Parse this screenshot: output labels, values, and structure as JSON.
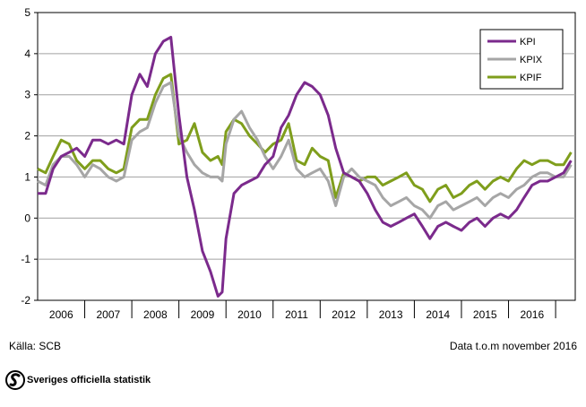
{
  "chart_data": {
    "type": "line",
    "title": "",
    "xlabel": "",
    "ylabel": "",
    "ylim": [
      -2,
      5
    ],
    "yticks": [
      "5",
      "4",
      "3",
      "2",
      "1",
      "0",
      "-1",
      "-2"
    ],
    "xlim": [
      2005.5,
      2016.917
    ],
    "xtick_years": [
      "2006",
      "2007",
      "2008",
      "2009",
      "2010",
      "2011",
      "2012",
      "2013",
      "2014",
      "2015",
      "2016"
    ],
    "legend_position": "top-right",
    "grid": "horizontal",
    "series": [
      {
        "name": "KPI",
        "color": "#7b2a8c",
        "points": [
          [
            2005.5,
            0.6
          ],
          [
            2005.67,
            0.6
          ],
          [
            2005.83,
            1.2
          ],
          [
            2006.0,
            1.5
          ],
          [
            2006.17,
            1.6
          ],
          [
            2006.33,
            1.7
          ],
          [
            2006.5,
            1.5
          ],
          [
            2006.67,
            1.9
          ],
          [
            2006.83,
            1.9
          ],
          [
            2007.0,
            1.8
          ],
          [
            2007.17,
            1.9
          ],
          [
            2007.33,
            1.8
          ],
          [
            2007.5,
            3.0
          ],
          [
            2007.67,
            3.5
          ],
          [
            2007.83,
            3.2
          ],
          [
            2008.0,
            4.0
          ],
          [
            2008.17,
            4.3
          ],
          [
            2008.33,
            4.4
          ],
          [
            2008.5,
            2.5
          ],
          [
            2008.67,
            1.0
          ],
          [
            2008.83,
            0.2
          ],
          [
            2009.0,
            -0.8
          ],
          [
            2009.17,
            -1.3
          ],
          [
            2009.33,
            -1.9
          ],
          [
            2009.42,
            -1.8
          ],
          [
            2009.5,
            -0.5
          ],
          [
            2009.67,
            0.6
          ],
          [
            2009.83,
            0.8
          ],
          [
            2010.0,
            0.9
          ],
          [
            2010.17,
            1.0
          ],
          [
            2010.33,
            1.3
          ],
          [
            2010.5,
            1.5
          ],
          [
            2010.67,
            2.2
          ],
          [
            2010.83,
            2.5
          ],
          [
            2011.0,
            3.0
          ],
          [
            2011.17,
            3.3
          ],
          [
            2011.33,
            3.2
          ],
          [
            2011.5,
            3.0
          ],
          [
            2011.67,
            2.5
          ],
          [
            2011.83,
            1.7
          ],
          [
            2012.0,
            1.1
          ],
          [
            2012.17,
            1.0
          ],
          [
            2012.33,
            0.9
          ],
          [
            2012.5,
            0.6
          ],
          [
            2012.67,
            0.2
          ],
          [
            2012.83,
            -0.1
          ],
          [
            2013.0,
            -0.2
          ],
          [
            2013.17,
            -0.1
          ],
          [
            2013.33,
            0.0
          ],
          [
            2013.5,
            0.1
          ],
          [
            2013.67,
            -0.2
          ],
          [
            2013.83,
            -0.5
          ],
          [
            2014.0,
            -0.2
          ],
          [
            2014.17,
            -0.1
          ],
          [
            2014.33,
            -0.2
          ],
          [
            2014.5,
            -0.3
          ],
          [
            2014.67,
            -0.1
          ],
          [
            2014.83,
            0.0
          ],
          [
            2015.0,
            -0.2
          ],
          [
            2015.17,
            0.0
          ],
          [
            2015.33,
            0.1
          ],
          [
            2015.5,
            0.0
          ],
          [
            2015.67,
            0.2
          ],
          [
            2015.83,
            0.5
          ],
          [
            2016.0,
            0.8
          ],
          [
            2016.17,
            0.9
          ],
          [
            2016.33,
            0.9
          ],
          [
            2016.5,
            1.0
          ],
          [
            2016.67,
            1.1
          ],
          [
            2016.83,
            1.4
          ]
        ]
      },
      {
        "name": "KPIX",
        "color": "#a6a6a6",
        "points": [
          [
            2005.5,
            0.9
          ],
          [
            2005.67,
            0.8
          ],
          [
            2005.83,
            1.3
          ],
          [
            2006.0,
            1.5
          ],
          [
            2006.17,
            1.5
          ],
          [
            2006.33,
            1.3
          ],
          [
            2006.5,
            1.0
          ],
          [
            2006.67,
            1.3
          ],
          [
            2006.83,
            1.2
          ],
          [
            2007.0,
            1.0
          ],
          [
            2007.17,
            0.9
          ],
          [
            2007.33,
            1.0
          ],
          [
            2007.5,
            1.9
          ],
          [
            2007.67,
            2.1
          ],
          [
            2007.83,
            2.2
          ],
          [
            2008.0,
            2.8
          ],
          [
            2008.17,
            3.2
          ],
          [
            2008.33,
            3.3
          ],
          [
            2008.5,
            2.0
          ],
          [
            2008.67,
            1.6
          ],
          [
            2008.83,
            1.3
          ],
          [
            2009.0,
            1.1
          ],
          [
            2009.17,
            1.0
          ],
          [
            2009.33,
            1.0
          ],
          [
            2009.42,
            0.9
          ],
          [
            2009.5,
            1.8
          ],
          [
            2009.67,
            2.4
          ],
          [
            2009.83,
            2.6
          ],
          [
            2010.0,
            2.2
          ],
          [
            2010.17,
            1.9
          ],
          [
            2010.33,
            1.5
          ],
          [
            2010.5,
            1.2
          ],
          [
            2010.67,
            1.5
          ],
          [
            2010.83,
            1.9
          ],
          [
            2011.0,
            1.2
          ],
          [
            2011.17,
            1.0
          ],
          [
            2011.33,
            1.1
          ],
          [
            2011.5,
            1.2
          ],
          [
            2011.67,
            0.9
          ],
          [
            2011.83,
            0.3
          ],
          [
            2012.0,
            1.0
          ],
          [
            2012.17,
            1.2
          ],
          [
            2012.33,
            1.0
          ],
          [
            2012.5,
            0.9
          ],
          [
            2012.67,
            0.8
          ],
          [
            2012.83,
            0.5
          ],
          [
            2013.0,
            0.3
          ],
          [
            2013.17,
            0.4
          ],
          [
            2013.33,
            0.5
          ],
          [
            2013.5,
            0.3
          ],
          [
            2013.67,
            0.2
          ],
          [
            2013.83,
            0.0
          ],
          [
            2014.0,
            0.3
          ],
          [
            2014.17,
            0.4
          ],
          [
            2014.33,
            0.2
          ],
          [
            2014.5,
            0.3
          ],
          [
            2014.67,
            0.4
          ],
          [
            2014.83,
            0.5
          ],
          [
            2015.0,
            0.3
          ],
          [
            2015.17,
            0.5
          ],
          [
            2015.33,
            0.6
          ],
          [
            2015.5,
            0.5
          ],
          [
            2015.67,
            0.7
          ],
          [
            2015.83,
            0.8
          ],
          [
            2016.0,
            1.0
          ],
          [
            2016.17,
            1.1
          ],
          [
            2016.33,
            1.1
          ],
          [
            2016.5,
            1.0
          ],
          [
            2016.67,
            1.0
          ],
          [
            2016.83,
            1.3
          ]
        ]
      },
      {
        "name": "KPIF",
        "color": "#7f9e1c",
        "points": [
          [
            2005.5,
            1.2
          ],
          [
            2005.67,
            1.1
          ],
          [
            2005.83,
            1.5
          ],
          [
            2006.0,
            1.9
          ],
          [
            2006.17,
            1.8
          ],
          [
            2006.33,
            1.4
          ],
          [
            2006.5,
            1.2
          ],
          [
            2006.67,
            1.4
          ],
          [
            2006.83,
            1.4
          ],
          [
            2007.0,
            1.2
          ],
          [
            2007.17,
            1.1
          ],
          [
            2007.33,
            1.2
          ],
          [
            2007.5,
            2.2
          ],
          [
            2007.67,
            2.4
          ],
          [
            2007.83,
            2.4
          ],
          [
            2008.0,
            3.0
          ],
          [
            2008.17,
            3.4
          ],
          [
            2008.33,
            3.5
          ],
          [
            2008.5,
            1.8
          ],
          [
            2008.67,
            1.9
          ],
          [
            2008.83,
            2.3
          ],
          [
            2009.0,
            1.6
          ],
          [
            2009.17,
            1.4
          ],
          [
            2009.33,
            1.5
          ],
          [
            2009.42,
            1.3
          ],
          [
            2009.5,
            2.1
          ],
          [
            2009.67,
            2.4
          ],
          [
            2009.83,
            2.3
          ],
          [
            2010.0,
            2.0
          ],
          [
            2010.17,
            1.8
          ],
          [
            2010.33,
            1.6
          ],
          [
            2010.5,
            1.8
          ],
          [
            2010.67,
            1.9
          ],
          [
            2010.83,
            2.3
          ],
          [
            2011.0,
            1.4
          ],
          [
            2011.17,
            1.3
          ],
          [
            2011.33,
            1.7
          ],
          [
            2011.5,
            1.5
          ],
          [
            2011.67,
            1.4
          ],
          [
            2011.83,
            0.5
          ],
          [
            2012.0,
            1.1
          ],
          [
            2012.17,
            1.0
          ],
          [
            2012.33,
            0.9
          ],
          [
            2012.5,
            1.0
          ],
          [
            2012.67,
            1.0
          ],
          [
            2012.83,
            0.8
          ],
          [
            2013.0,
            0.9
          ],
          [
            2013.17,
            1.0
          ],
          [
            2013.33,
            1.1
          ],
          [
            2013.5,
            0.8
          ],
          [
            2013.67,
            0.7
          ],
          [
            2013.83,
            0.4
          ],
          [
            2014.0,
            0.7
          ],
          [
            2014.17,
            0.8
          ],
          [
            2014.33,
            0.5
          ],
          [
            2014.5,
            0.6
          ],
          [
            2014.67,
            0.8
          ],
          [
            2014.83,
            0.9
          ],
          [
            2015.0,
            0.7
          ],
          [
            2015.17,
            0.9
          ],
          [
            2015.33,
            1.0
          ],
          [
            2015.5,
            0.9
          ],
          [
            2015.67,
            1.2
          ],
          [
            2015.83,
            1.4
          ],
          [
            2016.0,
            1.3
          ],
          [
            2016.17,
            1.4
          ],
          [
            2016.33,
            1.4
          ],
          [
            2016.5,
            1.3
          ],
          [
            2016.67,
            1.3
          ],
          [
            2016.83,
            1.6
          ]
        ]
      }
    ]
  },
  "footer": {
    "source": "Källa:  SCB",
    "data_note": "Data t.o.m november 2016"
  },
  "logo": {
    "text": "Sveriges officiella statistik",
    "icon": "scb-logo-icon"
  }
}
